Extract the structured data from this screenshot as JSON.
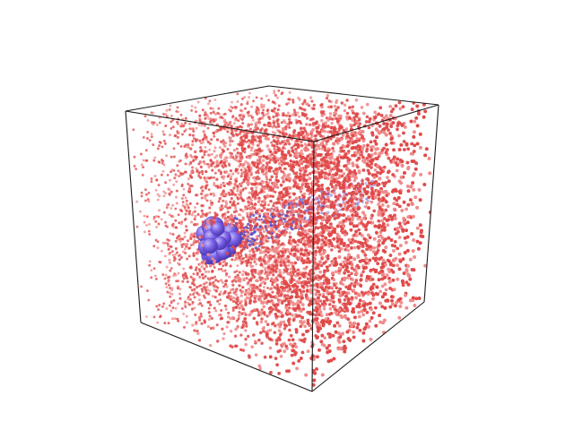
{
  "scene": {
    "subject": "molecular-dynamics-simulation-box",
    "background_color": "#ffffff",
    "box_edge_color": "#1a1a1a",
    "solvent_color": "#e04848",
    "solvent_highlight_color": "#f08a8a",
    "solute_color": "#7a62e6",
    "solute_highlight_color": "#b0a2f5",
    "solute_shadow_color": "#4a36b0",
    "trail_color": "#4c48c8"
  }
}
